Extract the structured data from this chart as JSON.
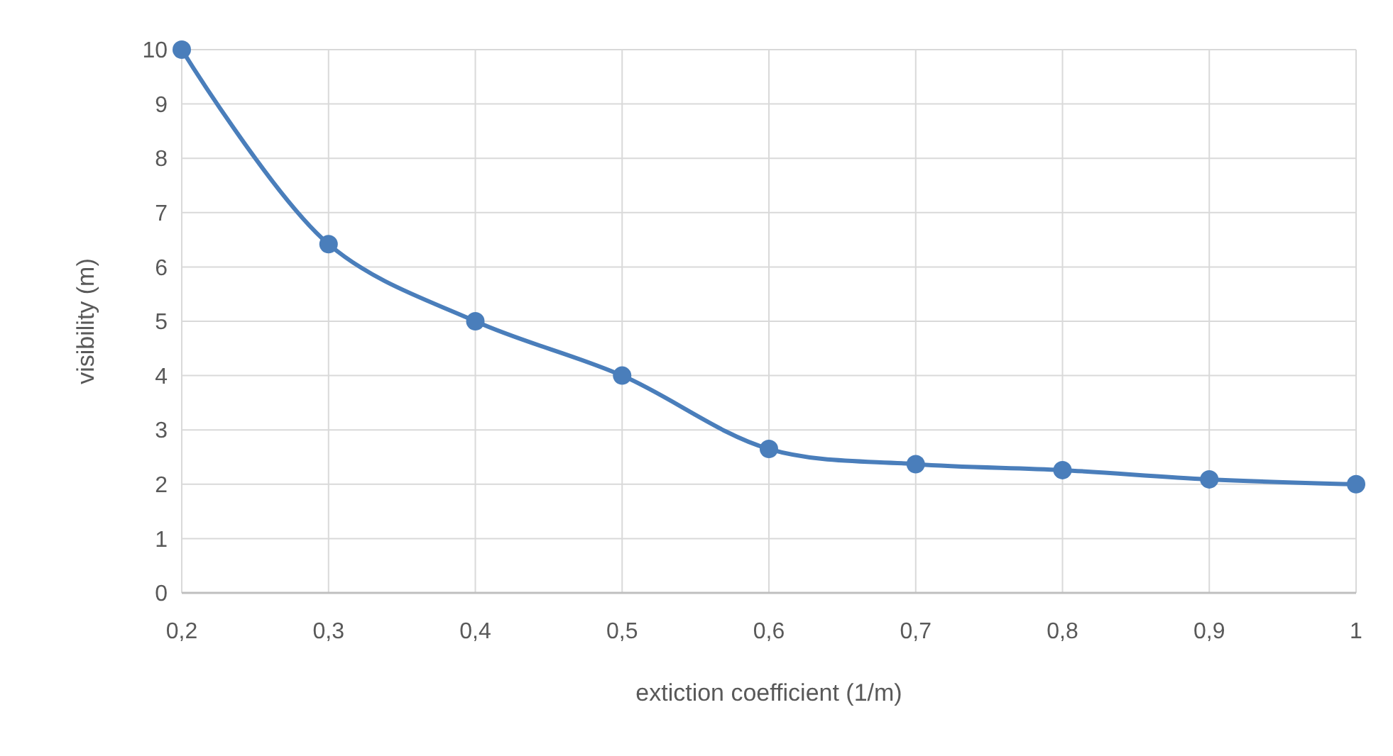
{
  "chart_data": {
    "type": "line",
    "xlabel": "extiction coefficient (1/m)",
    "ylabel": "visibility (m)",
    "categories": [
      "0,2",
      "0,3",
      "0,4",
      "0,5",
      "0,6",
      "0,7",
      "0,8",
      "0,9",
      "1"
    ],
    "series": [
      {
        "color": "#4a7ebb",
        "values": [
          10,
          6.42,
          5,
          4,
          2.65,
          2.37,
          2.26,
          2.09,
          2
        ]
      }
    ],
    "ylim": [
      0,
      10
    ],
    "yticks": [
      0,
      1,
      2,
      3,
      4,
      5,
      6,
      7,
      8,
      9,
      10
    ],
    "grid": true,
    "marker": "circle",
    "line_style": "solid"
  }
}
